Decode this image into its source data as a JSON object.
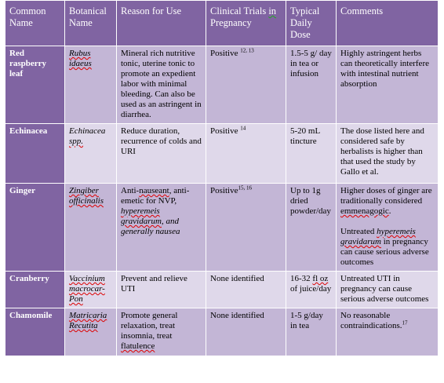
{
  "table": {
    "header": [
      "Common Name",
      "Botanical Name",
      "Reason for Use",
      [
        [
          {
            "text": "Clinical Trials "
          },
          {
            "text": "in",
            "grammar": true
          },
          {
            "text": " Pregnancy"
          }
        ]
      ],
      "Typical Daily Dose",
      "Comments"
    ],
    "rows": [
      {
        "name": "Red raspberry leaf",
        "cells": [
          [
            [
              {
                "text": "Rubus idaeus",
                "italic": true,
                "wavy": true
              }
            ]
          ],
          [
            [
              {
                "text": "Mineral rich nutritive tonic, uterine tonic to promote an expedient labor with minimal bleeding. Can also be used as an astringent in diarrhea."
              }
            ]
          ],
          [
            [
              {
                "text": "Positive "
              },
              {
                "text": "12, 13",
                "sup": true
              }
            ]
          ],
          [
            [
              {
                "text": "1.5-5 g/ day in tea or infusion"
              }
            ]
          ],
          [
            [
              {
                "text": "Highly astringent herbs can theoretically interfere with intestinal nutrient absorption"
              }
            ]
          ]
        ]
      },
      {
        "name": "Echinacea",
        "cells": [
          [
            [
              {
                "text": "Echinacea ",
                "italic": true
              },
              {
                "text": "spp.",
                "italic": true,
                "wavy": true
              }
            ]
          ],
          [
            [
              {
                "text": "Reduce duration, recurrence of colds and URI"
              }
            ]
          ],
          [
            [
              {
                "text": "Positive "
              },
              {
                "text": "14",
                "sup": true
              }
            ]
          ],
          [
            [
              {
                "text": "5-20 mL tincture"
              }
            ]
          ],
          [
            [
              {
                "text": "The dose listed here and considered safe by herbalists is higher than that used the study by Gallo et al."
              }
            ]
          ]
        ]
      },
      {
        "name": "Ginger",
        "cells": [
          [
            [
              {
                "text": "Zingiber officinalis",
                "italic": true,
                "wavy": true
              }
            ]
          ],
          [
            [
              {
                "text": "Anti-"
              },
              {
                "text": "nauseant",
                "wavy": true
              },
              {
                "text": ", anti-emetic for NVP, "
              },
              {
                "text": "hyperemeis gravidarum",
                "italic": true,
                "wavy": true
              },
              {
                "text": ", and generally nausea",
                "italic": true
              }
            ]
          ],
          [
            [
              {
                "text": "Positive"
              },
              {
                "text": "15, 16",
                "sup": true
              }
            ]
          ],
          [
            [
              {
                "text": "Up to 1g dried powder/day"
              }
            ]
          ],
          [
            [
              {
                "text": "Higher doses of ginger are traditionally considered "
              },
              {
                "text": "emmenagogic",
                "wavy": true
              },
              {
                "text": "."
              }
            ],
            [
              {
                "text": "Untreated "
              },
              {
                "text": "hyperemeis gravidarum",
                "italic": true,
                "wavy": true
              },
              {
                "text": " in pregnancy can cause serious adverse outcomes"
              }
            ]
          ]
        ]
      },
      {
        "name": "Cranberry",
        "cells": [
          [
            [
              {
                "text": "Vaccinium macrocar-Pon",
                "italic": true,
                "wavy": true
              }
            ]
          ],
          [
            [
              {
                "text": "Prevent and relieve UTI"
              }
            ]
          ],
          [
            [
              {
                "text": "None identified"
              }
            ]
          ],
          [
            [
              {
                "text": "16-32 "
              },
              {
                "text": "fl oz",
                "wavy": true
              },
              {
                "text": " of juice/day"
              }
            ]
          ],
          [
            [
              {
                "text": "Untreated UTI in pregnancy can cause serious adverse outcomes"
              }
            ]
          ]
        ]
      },
      {
        "name": "Chamomile",
        "cells": [
          [
            [
              {
                "text": "Matricaria Recutita",
                "italic": true,
                "wavy": true
              }
            ]
          ],
          [
            [
              {
                "text": "Promote general relaxation, treat insomnia, treat "
              },
              {
                "text": "flatulence",
                "wavy": true
              }
            ]
          ],
          [
            [
              {
                "text": "None identified"
              }
            ]
          ],
          [
            [
              {
                "text": "1-5 g/day in tea"
              }
            ]
          ],
          [
            [
              {
                "text": "No reasonable contraindications."
              },
              {
                "text": "17",
                "sup": true
              }
            ]
          ]
        ]
      }
    ]
  }
}
